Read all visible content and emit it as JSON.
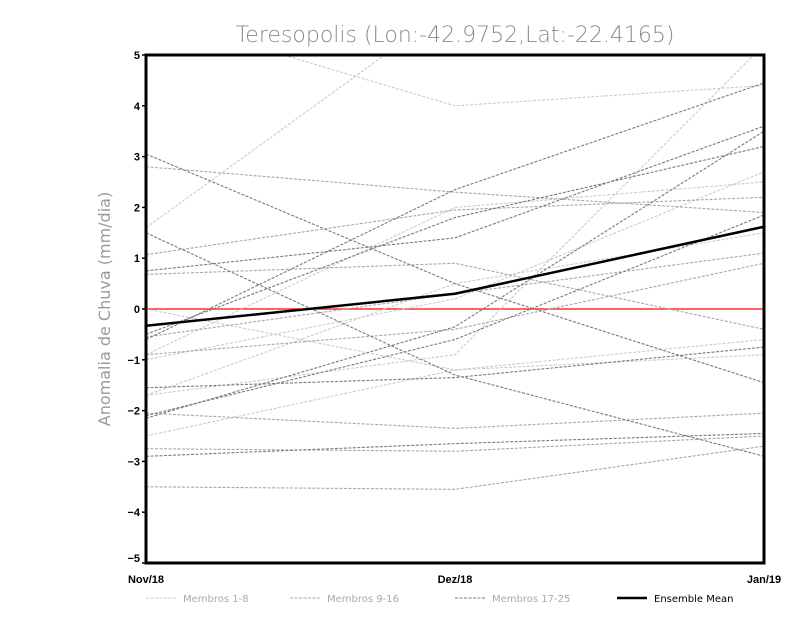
{
  "chart_data": {
    "type": "line",
    "title": "Teresopolis (Lon:-42.9752,Lat:-22.4165)",
    "xlabel": "",
    "ylabel": "Anomalia de Chuva (mm/dia)",
    "categories": [
      "Nov/18",
      "Dez/18",
      "Jan/19"
    ],
    "ylim": [
      -5,
      5
    ],
    "yticks": [
      -5,
      -4,
      -3,
      -2,
      -1,
      0,
      1,
      2,
      3,
      4,
      5
    ],
    "reference_line": {
      "value": 0,
      "color": "#ff3030"
    },
    "groups": [
      {
        "name": "Membros 1-8",
        "color": "#cccccc",
        "series": [
          [
            5.8,
            4.0,
            4.4
          ],
          [
            1.6,
            6.0,
            8.0
          ],
          [
            -1.7,
            -0.9,
            5.2
          ],
          [
            -2.5,
            -1.2,
            -0.6
          ],
          [
            -1.0,
            0.2,
            2.7
          ],
          [
            -0.9,
            2.0,
            2.5
          ],
          [
            0.0,
            -1.2,
            -0.9
          ],
          [
            -1.7,
            0.5,
            1.5
          ]
        ]
      },
      {
        "name": "Membros 9-16",
        "color": "#a8a8a8",
        "series": [
          [
            2.8,
            2.3,
            1.9
          ],
          [
            1.07,
            1.95,
            2.2
          ],
          [
            0.68,
            0.9,
            -0.4
          ],
          [
            -0.55,
            0.3,
            1.1
          ],
          [
            -2.05,
            -2.35,
            -2.05
          ],
          [
            -2.75,
            -2.8,
            -2.5
          ],
          [
            -3.5,
            -3.55,
            -2.7
          ],
          [
            -0.9,
            -0.4,
            0.9
          ]
        ]
      },
      {
        "name": "Membros 17-25",
        "color": "#7a7a7a",
        "series": [
          [
            3.05,
            0.5,
            -1.45
          ],
          [
            1.5,
            -1.3,
            -2.9
          ],
          [
            0.75,
            1.4,
            3.6
          ],
          [
            -0.6,
            2.35,
            4.45
          ],
          [
            -0.5,
            1.8,
            3.2
          ],
          [
            -2.15,
            -0.35,
            3.5
          ],
          [
            -1.55,
            -1.35,
            -0.75
          ],
          [
            -2.9,
            -2.65,
            -2.45
          ],
          [
            -2.1,
            -0.6,
            1.85
          ]
        ]
      }
    ],
    "ensemble_mean": {
      "name": "Ensemble Mean",
      "color": "#000000",
      "values": [
        -0.33,
        0.3,
        1.62
      ]
    },
    "legend": [
      "Membros 1-8",
      "Membros 9-16",
      "Membros 17-25",
      "Ensemble Mean"
    ],
    "legend_position": "bottom",
    "grid": false
  }
}
